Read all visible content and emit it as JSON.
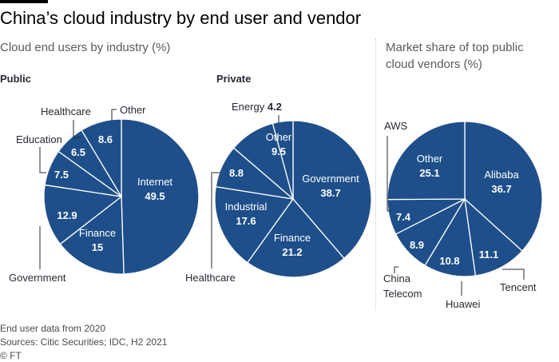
{
  "title": "China’s cloud industry by end user and vendor",
  "subtitle_left": "Cloud end users by industry (%)",
  "subtitle_right": "Market share of top public cloud vendors (%)",
  "footer": {
    "note": "End user data from 2020",
    "sources": "Sources: Citic Securities; IDC, H2 2021",
    "credit": "© FT"
  },
  "colors": {
    "slice": "#1e4f8a",
    "edge": "#ffffff",
    "leader": "#262a33"
  },
  "chart_data": [
    {
      "type": "pie",
      "title": "Public",
      "slices": [
        {
          "label": "Internet",
          "value": 49.5
        },
        {
          "label": "Finance",
          "value": 15
        },
        {
          "label": "Government",
          "value": 12.9
        },
        {
          "label": "Education",
          "value": 7.5
        },
        {
          "label": "Healthcare",
          "value": 6.5
        },
        {
          "label": "Other",
          "value": 8.6
        }
      ]
    },
    {
      "type": "pie",
      "title": "Private",
      "slices": [
        {
          "label": "Government",
          "value": 38.7
        },
        {
          "label": "Finance",
          "value": 21.2
        },
        {
          "label": "Industrial",
          "value": 17.6
        },
        {
          "label": "Healthcare",
          "value": 8.8
        },
        {
          "label": "Other",
          "value": 9.5
        },
        {
          "label": "Energy",
          "value": 4.2
        }
      ]
    },
    {
      "type": "pie",
      "title": "",
      "slices": [
        {
          "label": "Alibaba",
          "value": 36.7
        },
        {
          "label": "Tencent",
          "value": 11.1
        },
        {
          "label": "Huawei",
          "value": 10.8
        },
        {
          "label": "China Telecom",
          "value": 8.9
        },
        {
          "label": "AWS",
          "value": 7.4
        },
        {
          "label": "Other",
          "value": 25.1
        }
      ]
    }
  ]
}
